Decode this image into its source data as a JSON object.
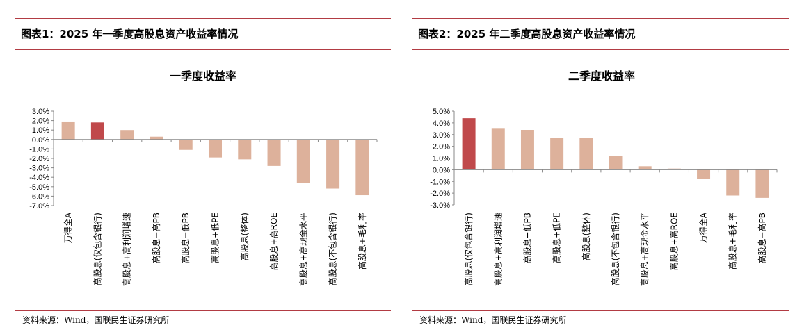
{
  "colors": {
    "accent_rule": "#b23b43",
    "highlight_bar": "#c0494b",
    "bar": "#ddb19b"
  },
  "left": {
    "figure_title": "图表1：2025 年一季度高股息资产收益率情况",
    "source": "资料来源：Wind，国联民生证券研究所"
  },
  "right": {
    "figure_title": "图表2：2025 年二季度高股息资产收益率情况",
    "source": "资料来源：Wind，国联民生证券研究所"
  },
  "chart_data": [
    {
      "type": "bar",
      "title": "一季度收益率",
      "categories": [
        "万得全A",
        "高股息(仅包含银行)",
        "高股息+高利润增速",
        "高股息+高PB",
        "高股息+低PB",
        "高股息+低PE",
        "高股息(整体)",
        "高股息+高ROE",
        "高股息+高现金水平",
        "高股息(不包含银行)",
        "高股息+毛利率"
      ],
      "values": [
        1.9,
        1.8,
        1.0,
        0.3,
        -1.1,
        -1.9,
        -2.1,
        -2.8,
        -4.6,
        -5.2,
        -5.9
      ],
      "highlight_index": 1,
      "ylim": [
        -7.0,
        3.0
      ],
      "yticks": [
        "3.0%",
        "2.0%",
        "1.0%",
        "0.0%",
        "-1.0%",
        "-2.0%",
        "-3.0%",
        "-4.0%",
        "-5.0%",
        "-6.0%",
        "-7.0%"
      ],
      "grid": false
    },
    {
      "type": "bar",
      "title": "二季度收益率",
      "categories": [
        "高股息(仅包含银行)",
        "高股息+高利润增速",
        "高股息+低PB",
        "高股息+低PE",
        "高股息(整体)",
        "高股息(不包含银行)",
        "高股息+高现金水平",
        "高股息+高ROE",
        "万得全A",
        "高股息+毛利率",
        "高股息+高PB"
      ],
      "values": [
        4.4,
        3.5,
        3.4,
        2.7,
        2.7,
        1.2,
        0.3,
        0.1,
        -0.8,
        -2.2,
        -2.4
      ],
      "highlight_index": 0,
      "ylim": [
        -3.0,
        5.0
      ],
      "yticks": [
        "5.0%",
        "4.0%",
        "3.0%",
        "2.0%",
        "1.0%",
        "0.0%",
        "-1.0%",
        "-2.0%",
        "-3.0%"
      ],
      "grid": false
    }
  ]
}
